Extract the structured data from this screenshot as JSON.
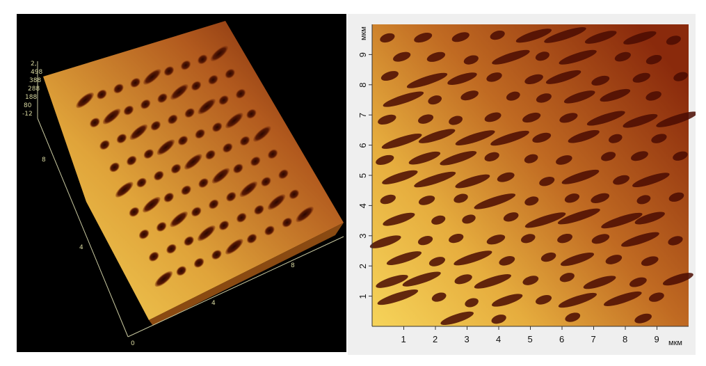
{
  "left_panel": {
    "z_scale_labels": [
      "2,",
      "498",
      "388",
      "288",
      "188",
      "80",
      "-12"
    ],
    "axis_ticks_front": [
      "0",
      "4",
      "8"
    ],
    "axis_ticks_left": [
      "8",
      "4"
    ]
  },
  "right_panel": {
    "x_unit": "мкм",
    "y_unit": "мкм",
    "x_ticks": [
      "1",
      "2",
      "3",
      "4",
      "5",
      "6",
      "7",
      "8",
      "9"
    ],
    "y_ticks": [
      "1",
      "2",
      "3",
      "4",
      "5",
      "6",
      "7",
      "8",
      "9"
    ],
    "x_range": [
      0,
      10
    ],
    "y_range": [
      0,
      10
    ]
  }
}
